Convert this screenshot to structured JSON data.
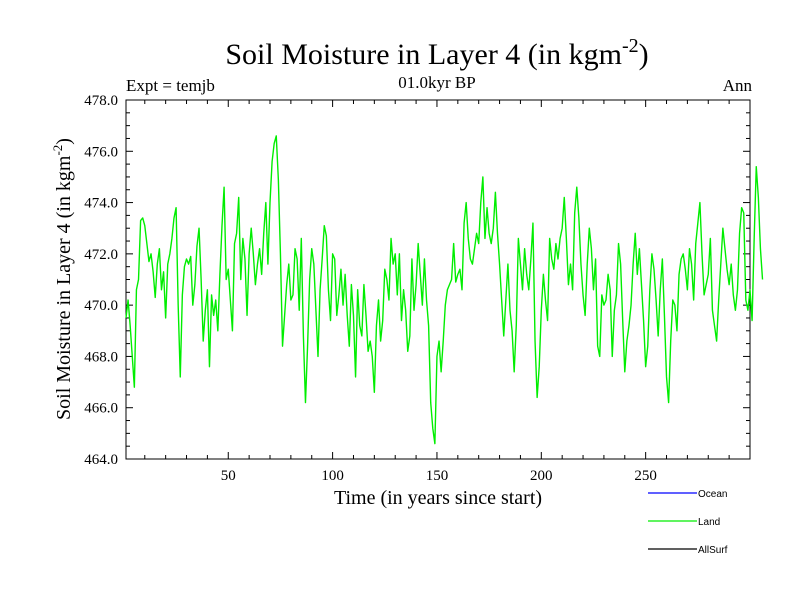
{
  "chart_data": {
    "type": "line",
    "title": "Soil Moisture in Layer 4 (in kgm",
    "title_superscript": "-2",
    "title_close": ")",
    "subtitle_left": "Expt = temjb",
    "subtitle_center": "01.0kyr BP",
    "subtitle_right": "Ann",
    "xlabel": "Time (in years since start)",
    "ylabel": "Soil Moisture in Layer 4 (in kgm",
    "ylabel_superscript": "-2",
    "ylabel_close": ")",
    "xlim": [
      1,
      300
    ],
    "ylim": [
      464.0,
      478.0
    ],
    "xticks": [
      50,
      100,
      150,
      200,
      250
    ],
    "xtick_labels": [
      "50",
      "100",
      "150",
      "200",
      "250"
    ],
    "yticks": [
      464,
      466,
      468,
      470,
      472,
      474,
      476,
      478
    ],
    "ytick_labels": [
      "464.0",
      "466.0",
      "468.0",
      "470.0",
      "472.0",
      "474.0",
      "476.0",
      "478.0"
    ],
    "legend": [
      {
        "name": "Ocean",
        "color": "#0000ff"
      },
      {
        "name": "Land",
        "color": "#00ee00"
      },
      {
        "name": "AllSurf",
        "color": "#000000"
      }
    ],
    "legend_position": "bottom-right",
    "series": [
      {
        "name": "Land",
        "color": "#00ee00",
        "x_start": 1,
        "x_step": 1,
        "values": [
          469.5,
          470.2,
          469.2,
          468.0,
          466.8,
          470.6,
          471.0,
          473.3,
          473.4,
          473.1,
          472.4,
          471.7,
          472.0,
          471.3,
          470.3,
          471.6,
          472.2,
          470.6,
          471.3,
          469.5,
          471.6,
          472.0,
          472.6,
          473.4,
          473.8,
          470.0,
          467.2,
          470.4,
          471.5,
          471.8,
          471.6,
          471.9,
          470.0,
          470.8,
          472.3,
          473.0,
          471.0,
          468.6,
          469.8,
          470.6,
          467.6,
          470.4,
          469.6,
          470.2,
          469.0,
          471.2,
          473.1,
          474.6,
          471.0,
          471.4,
          470.2,
          469.0,
          472.4,
          472.8,
          474.2,
          471.0,
          472.6,
          471.8,
          469.6,
          472.0,
          473.0,
          472.0,
          470.8,
          471.6,
          472.2,
          471.2,
          472.8,
          474.0,
          471.6,
          474.0,
          475.6,
          476.3,
          476.6,
          474.9,
          472.0,
          468.4,
          469.6,
          470.8,
          471.6,
          470.2,
          470.4,
          472.2,
          471.8,
          469.8,
          472.6,
          468.8,
          466.2,
          468.4,
          471.0,
          472.2,
          471.6,
          469.8,
          468.0,
          470.6,
          471.8,
          473.1,
          472.7,
          470.6,
          469.4,
          472.0,
          471.8,
          469.6,
          470.4,
          471.4,
          470.0,
          471.2,
          469.6,
          468.4,
          470.8,
          469.6,
          467.2,
          470.6,
          469.2,
          468.8,
          470.8,
          469.6,
          468.2,
          468.6,
          468.0,
          466.6,
          469.2,
          470.2,
          468.6,
          469.4,
          471.4,
          471.0,
          470.2,
          472.6,
          471.6,
          472.0,
          470.4,
          472.0,
          469.4,
          470.6,
          469.8,
          468.2,
          468.8,
          471.8,
          469.8,
          470.8,
          472.4,
          471.2,
          470.0,
          471.8,
          470.2,
          469.2,
          466.2,
          465.2,
          464.6,
          468.0,
          468.6,
          467.4,
          468.6,
          470.0,
          470.6,
          470.8,
          471.0,
          472.4,
          470.9,
          471.2,
          471.4,
          470.6,
          473.2,
          474.0,
          472.6,
          471.8,
          471.6,
          472.2,
          472.8,
          472.4,
          474.0,
          475.0,
          472.6,
          473.8,
          472.8,
          472.4,
          473.0,
          474.4,
          472.8,
          471.6,
          470.2,
          468.8,
          470.2,
          471.6,
          469.8,
          469.0,
          467.4,
          469.2,
          472.6,
          471.6,
          470.6,
          472.2,
          471.2,
          470.6,
          471.8,
          473.2,
          468.6,
          466.4,
          467.6,
          469.8,
          471.2,
          470.2,
          469.4,
          472.6,
          471.8,
          471.4,
          472.4,
          471.8,
          472.6,
          473.0,
          474.2,
          472.6,
          470.8,
          471.6,
          470.6,
          473.6,
          474.6,
          473.4,
          471.6,
          470.4,
          469.6,
          471.6,
          473.0,
          472.2,
          470.6,
          471.8,
          468.4,
          468.0,
          470.4,
          470.0,
          470.2,
          471.2,
          470.6,
          468.0,
          469.8,
          470.4,
          472.4,
          471.6,
          469.4,
          467.4,
          468.6,
          469.2,
          470.0,
          471.6,
          472.8,
          471.2,
          472.2,
          470.8,
          469.4,
          467.6,
          468.4,
          470.6,
          472.0,
          471.4,
          470.2,
          468.8,
          470.6,
          471.8,
          469.6,
          467.2,
          466.2,
          468.6,
          470.2,
          470.0,
          469.0,
          471.2,
          471.8,
          472.0,
          471.4,
          470.6,
          472.2,
          471.6,
          470.2,
          472.4,
          473.2,
          474.0,
          472.0,
          470.4,
          470.8,
          471.2,
          472.6,
          469.8,
          469.2,
          468.6,
          470.2,
          471.6,
          473.0,
          472.2,
          471.4,
          470.8,
          471.6,
          470.4,
          469.8,
          470.6,
          472.8,
          473.8,
          473.6,
          470.2,
          469.8,
          470.6,
          469.4,
          472.6,
          475.4,
          474.2,
          472.2,
          471.0
        ]
      },
      {
        "name": "Ocean",
        "color": "#0000ff",
        "values": []
      },
      {
        "name": "AllSurf",
        "color": "#000000",
        "values": []
      }
    ]
  }
}
